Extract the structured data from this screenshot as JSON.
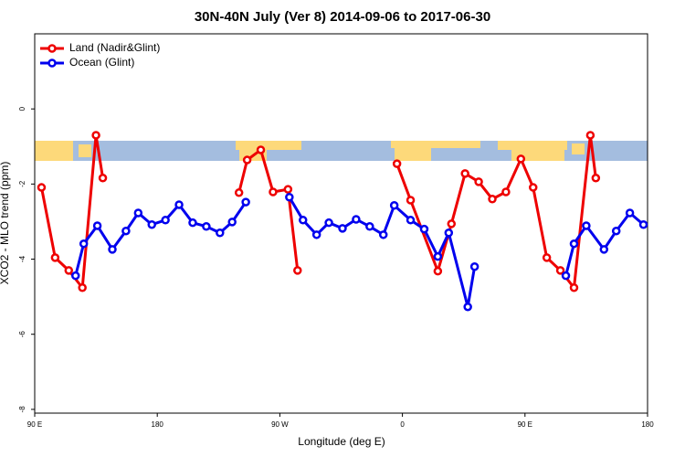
{
  "chart_data": {
    "type": "line",
    "title": "30N-40N July (Ver 8)   2014-09-06 to 2017-06-30",
    "x_label": "Longitude (deg E)",
    "y_label": "XCO2 - MLO trend (ppm)",
    "xlim": [
      90,
      540
    ],
    "ylim": [
      -8.1,
      2
    ],
    "xticks": [
      {
        "value": 90,
        "label": "90 E"
      },
      180,
      {
        "value": 270,
        "label": "90 W"
      },
      {
        "value": 360,
        "label": "0"
      },
      {
        "value": 450,
        "label": "90 E"
      },
      {
        "value": 540,
        "label": "180"
      }
    ],
    "yticks": [
      0,
      -2,
      -4,
      -6,
      -8
    ],
    "legend": "top-left",
    "series": [
      {
        "name": "Land (Nadir&Glint)",
        "color": "#ee0000",
        "x": [
          95,
          105,
          115,
          125,
          135,
          140,
          null,
          240,
          246,
          256,
          265,
          276,
          283,
          null,
          356,
          366,
          386,
          396,
          406,
          416,
          426,
          436,
          447,
          456,
          466,
          476,
          486,
          498,
          502
        ],
        "values": [
          -2.09,
          -3.96,
          -4.3,
          -4.76,
          -0.7,
          -1.84,
          null,
          -2.23,
          -1.36,
          -1.09,
          -2.21,
          -2.14,
          -4.3,
          null,
          -1.46,
          -2.43,
          -4.32,
          -3.06,
          -1.72,
          -1.94,
          -2.4,
          -2.21,
          -1.33,
          -2.09,
          -3.96,
          -4.3,
          -4.76,
          -0.7,
          -1.84
        ]
      },
      {
        "name": "Ocean (Glint)",
        "color": "#0000ee",
        "x": [
          120,
          126,
          136,
          147,
          157,
          166,
          176,
          186,
          196,
          206,
          216,
          226,
          235,
          245,
          null,
          277,
          287,
          297,
          306,
          316,
          326,
          336,
          346,
          354,
          366,
          376,
          386,
          394,
          408,
          413,
          null,
          480,
          486,
          495,
          508,
          517,
          527,
          537
        ],
        "values": [
          -4.44,
          -3.59,
          -3.11,
          -3.74,
          -3.25,
          -2.77,
          -3.08,
          -2.96,
          -2.55,
          -3.03,
          -3.13,
          -3.3,
          -3.01,
          -2.48,
          null,
          -2.35,
          -2.96,
          -3.35,
          -3.03,
          -3.18,
          -2.94,
          -3.13,
          -3.35,
          -2.57,
          -2.96,
          -3.2,
          -3.93,
          -3.3,
          -5.27,
          -4.2,
          null,
          -4.44,
          -3.59,
          -3.11,
          -3.74,
          -3.25,
          -2.77,
          -3.08
        ]
      }
    ]
  }
}
